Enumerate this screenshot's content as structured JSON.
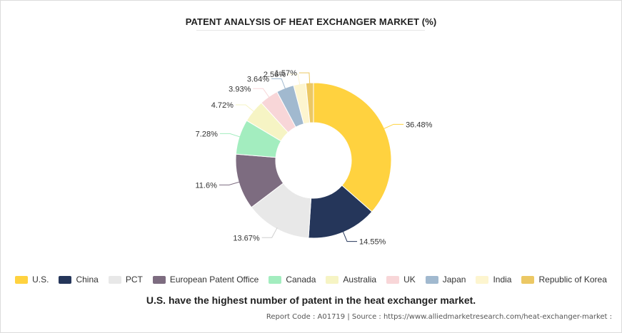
{
  "title": "PATENT ANALYSIS OF HEAT EXCHANGER MARKET (%)",
  "caption": "U.S. have the highest number of patent in the heat exchanger market.",
  "footer": "Report Code : A01719  |  Source : https://www.alliedmarketresearch.com/heat-exchanger-market :",
  "chart_data": {
    "type": "pie",
    "donut": true,
    "legend_position": "bottom",
    "categories": [
      "U.S.",
      "China",
      "PCT",
      "European Patent Office",
      "Canada",
      "Australia",
      "UK",
      "Japan",
      "India",
      "Republic of Korea"
    ],
    "values": [
      36.48,
      14.55,
      13.67,
      11.6,
      7.28,
      4.72,
      3.93,
      3.64,
      2.56,
      1.57
    ],
    "labels": [
      "36.48%",
      "14.55%",
      "13.67%",
      "11.6%",
      "7.28%",
      "4.72%",
      "3.93%",
      "3.64%",
      "2.56%",
      "1.57%"
    ],
    "colors": [
      "#ffd23f",
      "#25365a",
      "#e8e8e8",
      "#7d6c80",
      "#a3edbf",
      "#f6f4c4",
      "#f8d6d8",
      "#a1b9cf",
      "#fdf5cf",
      "#ecc864"
    ]
  }
}
